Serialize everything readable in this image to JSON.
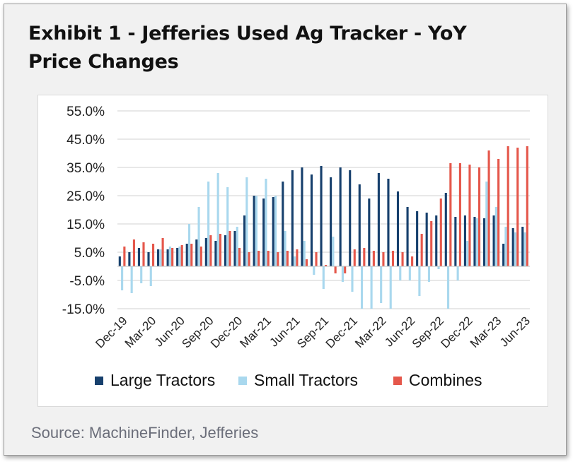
{
  "header": {
    "title_line1": "Exhibit 1 - Jefferies Used Ag Tracker - YoY",
    "title_line2": "Price Changes"
  },
  "footer": {
    "source": "Source: MachineFinder, Jefferies"
  },
  "colors": {
    "large_tractors": "#17406d",
    "small_tractors": "#a9d8ee",
    "combines": "#e5574b",
    "gridline": "#d0d0d0",
    "axis_text": "#222222"
  },
  "chart_data": {
    "type": "bar",
    "title": "Exhibit 1 - Jefferies Used Ag Tracker - YoY Price Changes",
    "xlabel": "",
    "ylabel": "",
    "ylim": [
      -15,
      55
    ],
    "y_ticks": [
      55,
      45,
      35,
      25,
      15,
      5,
      -5,
      -15
    ],
    "y_tick_labels": [
      "55.0%",
      "45.0%",
      "35.0%",
      "25.0%",
      "15.0%",
      "5.0%",
      "-5.0%",
      "-15.0%"
    ],
    "grid": true,
    "legend_position": "bottom",
    "categories": [
      "Dec-19",
      "Jan-20",
      "Feb-20",
      "Mar-20",
      "Apr-20",
      "May-20",
      "Jun-20",
      "Jul-20",
      "Aug-20",
      "Sep-20",
      "Oct-20",
      "Nov-20",
      "Dec-20",
      "Jan-21",
      "Feb-21",
      "Mar-21",
      "Apr-21",
      "May-21",
      "Jun-21",
      "Jul-21",
      "Aug-21",
      "Sep-21",
      "Oct-21",
      "Nov-21",
      "Dec-21",
      "Jan-22",
      "Feb-22",
      "Mar-22",
      "Apr-22",
      "May-22",
      "Jun-22",
      "Jul-22",
      "Aug-22",
      "Sep-22",
      "Oct-22",
      "Nov-22",
      "Dec-22",
      "Jan-23",
      "Feb-23",
      "Mar-23",
      "Apr-23",
      "May-23",
      "Jun-23"
    ],
    "x_tick_labels": [
      "Dec-19",
      "Mar-20",
      "Jun-20",
      "Sep-20",
      "Dec-20",
      "Mar-21",
      "Jun-21",
      "Sep-21",
      "Dec-21",
      "Mar-22",
      "Jun-22",
      "Sep-22",
      "Dec-22",
      "Mar-23",
      "Jun-23"
    ],
    "series": [
      {
        "name": "Large Tractors",
        "values": [
          3.5,
          5,
          6.5,
          5,
          6,
          6,
          6.5,
          8,
          9.5,
          10,
          9,
          11,
          12.5,
          18,
          25,
          24,
          24.5,
          30,
          34,
          35,
          32.5,
          35.5,
          31.5,
          35,
          34,
          29,
          24,
          33,
          31,
          26.5,
          21,
          19.5,
          19,
          18,
          26,
          17.5,
          18,
          17.5,
          17,
          18,
          8,
          13.5,
          14
        ]
      },
      {
        "name": "Small Tractors",
        "values": [
          -8.5,
          -9.5,
          -6,
          -7,
          6,
          7,
          7,
          15,
          21,
          30,
          33,
          28,
          14,
          31.5,
          25,
          31,
          25,
          12.5,
          3.5,
          9,
          -3,
          -8,
          10.5,
          -5.5,
          -9,
          -15,
          -15,
          -13,
          -15,
          -5,
          -5,
          -10.5,
          -5.5,
          -1,
          -15,
          -5,
          9,
          17,
          30,
          21,
          14,
          12,
          12
        ]
      },
      {
        "name": "Combines",
        "values": [
          7,
          9.5,
          8.5,
          8,
          10,
          6.5,
          7.5,
          8,
          7,
          11,
          11.5,
          12.5,
          6.5,
          5,
          5.5,
          5.5,
          5,
          5.5,
          6,
          2.5,
          5,
          0.5,
          -2.5,
          -2.5,
          6,
          6.5,
          5.5,
          5,
          5.5,
          5,
          3.5,
          11.5,
          16,
          24,
          36.5,
          36.5,
          36,
          35,
          41,
          38,
          42.5,
          42,
          42.5
        ]
      }
    ]
  }
}
